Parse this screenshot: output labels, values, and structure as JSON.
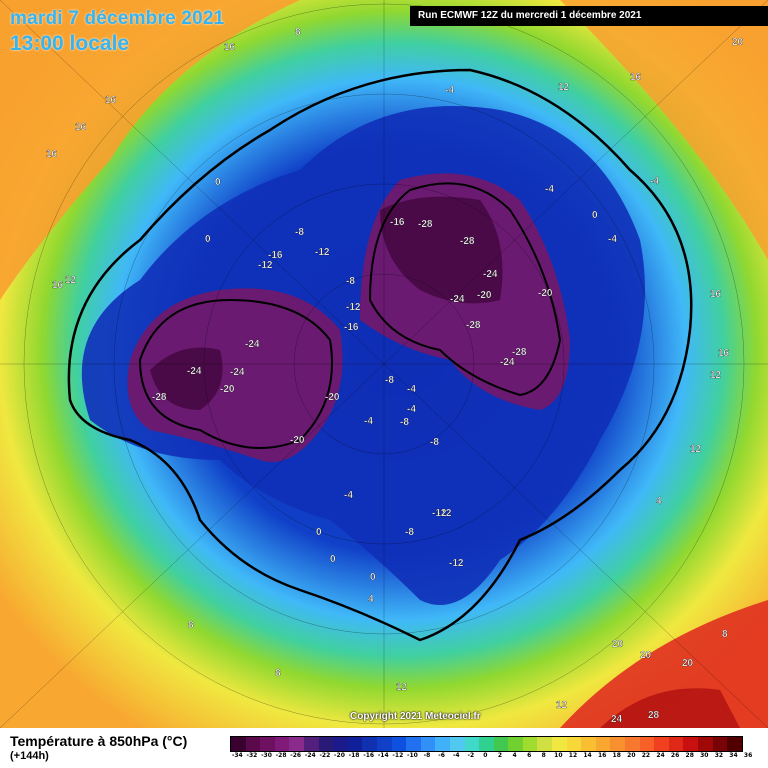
{
  "header": {
    "date": "mardi 7 décembre 2021",
    "time": "13:00 locale",
    "run": "Run ECMWF 12Z du mercredi 1 décembre 2021"
  },
  "copyright": "Copyright 2021 Meteociel.fr",
  "footer": {
    "title": "Température à 850hPa (°C)",
    "subtitle": "(+144h)"
  },
  "legend": {
    "ticks": [
      "-34",
      "-32",
      "-30",
      "-28",
      "-26",
      "-24",
      "-22",
      "-20",
      "-18",
      "-16",
      "-14",
      "-12",
      "-10",
      "-8",
      "-6",
      "-4",
      "-2",
      "0",
      "2",
      "4",
      "6",
      "8",
      "10",
      "12",
      "14",
      "16",
      "18",
      "20",
      "22",
      "24",
      "26",
      "28",
      "30",
      "32",
      "34",
      "36"
    ],
    "colors": [
      "#3a0030",
      "#5a0a4a",
      "#6e1060",
      "#801a78",
      "#8a2a8a",
      "#52207a",
      "#2a1a78",
      "#1a1a8a",
      "#10209a",
      "#1030b0",
      "#1040c8",
      "#1050e0",
      "#2070f0",
      "#3090f8",
      "#40b0f8",
      "#50c8f0",
      "#40d8c8",
      "#30d090",
      "#40c850",
      "#70d030",
      "#a0dc30",
      "#d0e040",
      "#f0e840",
      "#f8d838",
      "#f8c030",
      "#f8a830",
      "#f89030",
      "#f87830",
      "#f86028",
      "#f04020",
      "#e02818",
      "#c81010",
      "#a00808",
      "#780408",
      "#500000"
    ]
  },
  "map_labels": [
    {
      "text": "16"
    },
    {
      "text": "16"
    },
    {
      "text": "16"
    },
    {
      "text": "16"
    },
    {
      "text": "12"
    },
    {
      "text": "16"
    },
    {
      "text": "12"
    },
    {
      "text": "8"
    },
    {
      "text": "-4"
    },
    {
      "text": "-4"
    },
    {
      "text": "-8"
    },
    {
      "text": "0"
    },
    {
      "text": "0"
    },
    {
      "text": "-16"
    },
    {
      "text": "-12"
    },
    {
      "text": "-16"
    },
    {
      "text": "-28"
    },
    {
      "text": "-28"
    },
    {
      "text": "-24"
    },
    {
      "text": "-20"
    },
    {
      "text": "-20"
    },
    {
      "text": "-24"
    },
    {
      "text": "-28"
    },
    {
      "text": "-28"
    },
    {
      "text": "-24"
    },
    {
      "text": "-28"
    },
    {
      "text": "-24"
    },
    {
      "text": "-24"
    },
    {
      "text": "-24"
    },
    {
      "text": "-20"
    },
    {
      "text": "-20"
    },
    {
      "text": "-20"
    },
    {
      "text": "-12"
    },
    {
      "text": "-12"
    },
    {
      "text": "-8"
    },
    {
      "text": "-8"
    },
    {
      "text": "-12"
    },
    {
      "text": "-16"
    },
    {
      "text": "-8"
    },
    {
      "text": "-4"
    },
    {
      "text": "-4"
    },
    {
      "text": "-8"
    },
    {
      "text": "-8"
    },
    {
      "text": "-12"
    },
    {
      "text": "-12"
    },
    {
      "text": "-4"
    },
    {
      "text": "0"
    },
    {
      "text": "0"
    },
    {
      "text": "0"
    },
    {
      "text": "4"
    },
    {
      "text": "-4"
    },
    {
      "text": "0"
    },
    {
      "text": "-4"
    },
    {
      "text": "-4"
    },
    {
      "text": "16"
    },
    {
      "text": "16"
    },
    {
      "text": "12"
    },
    {
      "text": "12"
    },
    {
      "text": "20"
    },
    {
      "text": "20"
    },
    {
      "text": "20"
    },
    {
      "text": "24"
    },
    {
      "text": "28"
    },
    {
      "text": "8"
    },
    {
      "text": "8"
    },
    {
      "text": "12"
    },
    {
      "text": "20"
    },
    {
      "text": "16"
    },
    {
      "text": "12"
    },
    {
      "text": "16"
    },
    {
      "text": "4"
    },
    {
      "text": "8"
    }
  ]
}
